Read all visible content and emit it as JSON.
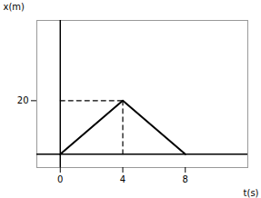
{
  "chart_data": {
    "type": "line",
    "title": "",
    "xlabel": "t(s)",
    "ylabel": "x(m)",
    "x": [
      0,
      4,
      8
    ],
    "values": [
      0,
      20,
      0
    ],
    "color": "#000000",
    "xlim": [
      -1.5,
      12
    ],
    "ylim": [
      -5,
      50
    ],
    "xticks": [
      0,
      4,
      8
    ],
    "yticks": [
      20
    ],
    "grid": false
  }
}
